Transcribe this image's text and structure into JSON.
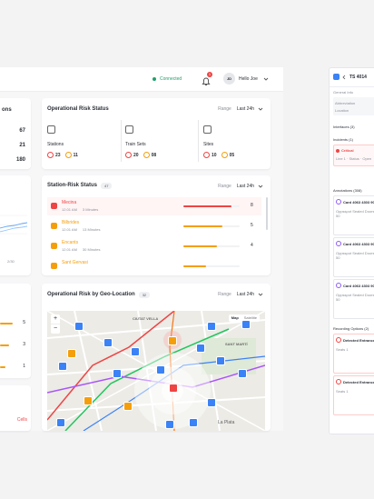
{
  "topbar": {
    "status": "Connected",
    "notif_count": "1",
    "user_initials": "JD",
    "user_name": "Hello Joe"
  },
  "left_top_card": {
    "title_frag": "ons",
    "values": [
      "67",
      "21",
      "180"
    ]
  },
  "left_chart": {
    "axis_label": "2/30"
  },
  "left_bottom": {
    "values": [
      "5",
      "3",
      "1"
    ],
    "bottom_label": "Cells"
  },
  "risk_status": {
    "title": "Operational Risk Status",
    "range_label": "Range",
    "range_value": "Last 24h",
    "columns": [
      {
        "label": "Stations",
        "red": "23",
        "orange": "11"
      },
      {
        "label": "Train Sets",
        "red": "20",
        "orange": "08"
      },
      {
        "label": "Sites",
        "red": "10",
        "orange": "05"
      }
    ]
  },
  "station_risk": {
    "title": "Station-Risk Status",
    "badge": "47",
    "range_label": "Range",
    "range_value": "Last 24h",
    "items": [
      {
        "name": "Mecina",
        "meta1": "12.01 AM",
        "meta2": "3 Minutes",
        "count": "8",
        "color": "#ef4444",
        "fill": 0.85
      },
      {
        "name": "Bilbrides",
        "meta1": "12.01 AM",
        "meta2": "13 Minutes",
        "count": "5",
        "color": "#f59e0b",
        "fill": 0.7
      },
      {
        "name": "Encants",
        "meta1": "12.01 AM",
        "meta2": "30 Minutes",
        "count": "4",
        "color": "#f59e0b",
        "fill": 0.6
      },
      {
        "name": "Sant Gervasi",
        "meta1": "",
        "meta2": "",
        "count": "",
        "color": "#f59e0b",
        "fill": 0.4
      }
    ]
  },
  "map_card": {
    "title": "Operational Risk by Geo-Location",
    "badge": "32",
    "range_label": "Range",
    "range_value": "Last 24h",
    "map_tabs": [
      "Map",
      "Satellite"
    ],
    "labels": {
      "district1": "CIUTAT VELLA",
      "district2": "SANT MARTÍ",
      "area": "La Plata"
    }
  },
  "side_panel": {
    "title": "TS 4014",
    "section_general": "General Info",
    "fields": [
      {
        "label": "Abbreviation",
        "value": "—"
      },
      {
        "label": "Location",
        "value": "—"
      }
    ],
    "interface_label": "Interfaces (3)",
    "incidents_label": "Incidents (1)",
    "incident_title": "Critical",
    "incident_sub": "Line 1 · Status · Open",
    "annotations_label": "Annotations (308)",
    "annotation_items": [
      {
        "title": "Card 4063 4303 9081",
        "body": "Oppsspot Sealed Doors at 50"
      },
      {
        "title": "Card 4063 4303 9081",
        "body": "Oppsspot Sealed Doors at 50"
      },
      {
        "title": "Card 4063 4303 9081",
        "body": "Oppsspot Sealed Doors at 50"
      }
    ],
    "recordings_label": "Recording Options (2)",
    "recording_items": [
      {
        "title": "Detected Entrance",
        "body": "Seats 1"
      },
      {
        "title": "Detected Entrance",
        "body": "Seats 1"
      }
    ]
  },
  "colors": {
    "red": "#ef4444",
    "orange": "#f59e0b",
    "blue": "#3b82f6",
    "green": "#22a06b"
  }
}
